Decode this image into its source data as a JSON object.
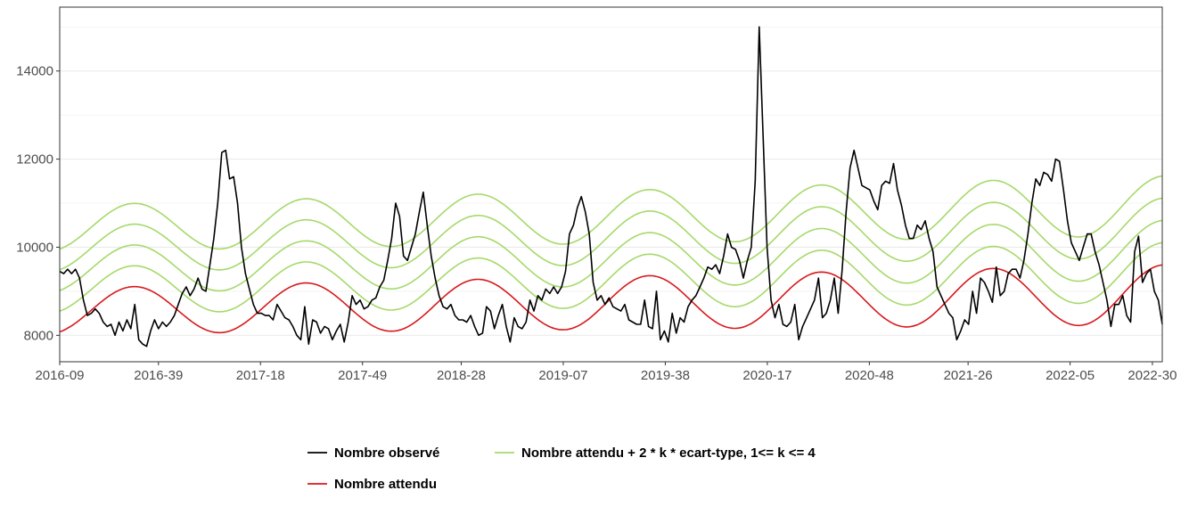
{
  "chart_data": {
    "type": "line",
    "title": "",
    "xlabel": "",
    "ylabel": "",
    "x_ticks": [
      "2016-09",
      "2016-39",
      "2017-18",
      "2017-49",
      "2018-28",
      "2019-07",
      "2019-38",
      "2020-17",
      "2020-48",
      "2021-26",
      "2022-05",
      "2022-30"
    ],
    "x_tick_weeks": [
      0,
      30,
      61,
      92,
      122,
      153,
      184,
      215,
      246,
      276,
      307,
      332
    ],
    "x_range_weeks": [
      0,
      335
    ],
    "y_ticks": [
      8000,
      10000,
      12000,
      14000
    ],
    "ylim": [
      7400,
      15450
    ],
    "grid": true,
    "legend_position": "bottom",
    "legend": [
      {
        "label": "Nombre observé",
        "color": "#000000"
      },
      {
        "label": "Nombre attendu + 2 * k * ecart-type, 1<= k <= 4",
        "color": "#a6d96a"
      },
      {
        "label": "Nombre attendu",
        "color": "#d7191c"
      }
    ],
    "expected": {
      "name": "Nombre attendu",
      "color": "#d7191c",
      "mean_start": 8550,
      "mean_end": 8920,
      "amplitude_start": 520,
      "amplitude_end": 680,
      "period_weeks": 52.2,
      "peak_week": 22.5
    },
    "thresholds": {
      "name": "Nombre attendu + 2 * k * ecart-type, 1<= k <= 4",
      "color": "#a6d96a",
      "k_values": [
        1,
        2,
        3,
        4
      ],
      "step_start": 470,
      "step_end": 505
    },
    "observed": {
      "name": "Nombre observé",
      "color": "#000000",
      "points": [
        [
          0,
          9450
        ],
        [
          1,
          9400
        ],
        [
          2,
          9500
        ],
        [
          3,
          9400
        ],
        [
          4,
          9500
        ],
        [
          5,
          9300
        ],
        [
          6,
          8800
        ],
        [
          7,
          8450
        ],
        [
          8,
          8500
        ],
        [
          9,
          8600
        ],
        [
          10,
          8500
        ],
        [
          11,
          8300
        ],
        [
          12,
          8200
        ],
        [
          13,
          8250
        ],
        [
          14,
          8000
        ],
        [
          15,
          8300
        ],
        [
          16,
          8100
        ],
        [
          17,
          8350
        ],
        [
          18,
          8150
        ],
        [
          19,
          8700
        ],
        [
          20,
          7900
        ],
        [
          21,
          7800
        ],
        [
          22,
          7750
        ],
        [
          23,
          8100
        ],
        [
          24,
          8350
        ],
        [
          25,
          8150
        ],
        [
          26,
          8300
        ],
        [
          27,
          8200
        ],
        [
          28,
          8300
        ],
        [
          29,
          8450
        ],
        [
          30,
          8700
        ],
        [
          31,
          8950
        ],
        [
          32,
          9100
        ],
        [
          33,
          8900
        ],
        [
          34,
          9050
        ],
        [
          35,
          9300
        ],
        [
          36,
          9050
        ],
        [
          37,
          9000
        ],
        [
          38,
          9600
        ],
        [
          39,
          10200
        ],
        [
          40,
          11000
        ],
        [
          41,
          12150
        ],
        [
          42,
          12200
        ],
        [
          43,
          11550
        ],
        [
          44,
          11600
        ],
        [
          45,
          11000
        ],
        [
          46,
          10000
        ],
        [
          47,
          9400
        ],
        [
          48,
          9050
        ],
        [
          49,
          8700
        ],
        [
          50,
          8500
        ],
        [
          51,
          8500
        ],
        [
          52,
          8450
        ],
        [
          53,
          8450
        ],
        [
          54,
          8350
        ],
        [
          55,
          8700
        ],
        [
          56,
          8550
        ],
        [
          57,
          8400
        ],
        [
          58,
          8350
        ],
        [
          59,
          8200
        ],
        [
          60,
          8000
        ],
        [
          61,
          7900
        ],
        [
          62,
          8650
        ],
        [
          63,
          7800
        ],
        [
          64,
          8350
        ],
        [
          65,
          8300
        ],
        [
          66,
          8050
        ],
        [
          67,
          8200
        ],
        [
          68,
          8150
        ],
        [
          69,
          7900
        ],
        [
          70,
          8100
        ],
        [
          71,
          8250
        ],
        [
          72,
          7850
        ],
        [
          73,
          8300
        ],
        [
          74,
          8900
        ],
        [
          75,
          8700
        ],
        [
          76,
          8800
        ],
        [
          77,
          8600
        ],
        [
          78,
          8650
        ],
        [
          79,
          8800
        ],
        [
          80,
          8850
        ],
        [
          81,
          9100
        ],
        [
          82,
          9250
        ],
        [
          83,
          9700
        ],
        [
          84,
          10200
        ],
        [
          85,
          11000
        ],
        [
          86,
          10700
        ],
        [
          87,
          9800
        ],
        [
          88,
          9700
        ],
        [
          89,
          10000
        ],
        [
          90,
          10300
        ],
        [
          91,
          10800
        ],
        [
          92,
          11250
        ],
        [
          93,
          10500
        ],
        [
          94,
          9800
        ],
        [
          95,
          9300
        ],
        [
          96,
          8900
        ],
        [
          97,
          8650
        ],
        [
          98,
          8600
        ],
        [
          99,
          8700
        ],
        [
          100,
          8450
        ],
        [
          101,
          8350
        ],
        [
          102,
          8350
        ],
        [
          103,
          8300
        ],
        [
          104,
          8450
        ],
        [
          105,
          8200
        ],
        [
          106,
          8000
        ],
        [
          107,
          8050
        ],
        [
          108,
          8650
        ],
        [
          109,
          8550
        ],
        [
          110,
          8150
        ],
        [
          111,
          8450
        ],
        [
          112,
          8700
        ],
        [
          113,
          8200
        ],
        [
          114,
          7850
        ],
        [
          115,
          8400
        ],
        [
          116,
          8200
        ],
        [
          117,
          8150
        ],
        [
          118,
          8300
        ],
        [
          119,
          8800
        ],
        [
          120,
          8550
        ],
        [
          121,
          8900
        ],
        [
          122,
          8800
        ],
        [
          123,
          9050
        ],
        [
          124,
          8950
        ],
        [
          125,
          9100
        ],
        [
          126,
          8950
        ],
        [
          127,
          9100
        ],
        [
          128,
          9450
        ],
        [
          129,
          10300
        ],
        [
          130,
          10500
        ],
        [
          131,
          10900
        ],
        [
          132,
          11150
        ],
        [
          133,
          10800
        ],
        [
          134,
          10300
        ],
        [
          135,
          9200
        ],
        [
          136,
          8800
        ],
        [
          137,
          8900
        ],
        [
          138,
          8700
        ],
        [
          139,
          8850
        ],
        [
          140,
          8650
        ],
        [
          141,
          8600
        ],
        [
          142,
          8550
        ],
        [
          143,
          8700
        ],
        [
          144,
          8350
        ],
        [
          145,
          8300
        ],
        [
          146,
          8250
        ],
        [
          147,
          8250
        ],
        [
          148,
          8800
        ],
        [
          149,
          8200
        ],
        [
          150,
          8150
        ],
        [
          151,
          9000
        ],
        [
          152,
          7900
        ],
        [
          153,
          8100
        ],
        [
          154,
          7850
        ],
        [
          155,
          8500
        ],
        [
          156,
          8050
        ],
        [
          157,
          8400
        ],
        [
          158,
          8300
        ],
        [
          159,
          8650
        ],
        [
          160,
          8800
        ],
        [
          161,
          8900
        ],
        [
          162,
          9100
        ],
        [
          163,
          9300
        ],
        [
          164,
          9550
        ],
        [
          165,
          9500
        ],
        [
          166,
          9600
        ],
        [
          167,
          9400
        ],
        [
          168,
          9800
        ],
        [
          169,
          10300
        ],
        [
          170,
          10000
        ],
        [
          171,
          9950
        ],
        [
          172,
          9700
        ],
        [
          173,
          9300
        ],
        [
          174,
          9700
        ],
        [
          175,
          10000
        ],
        [
          176,
          11500
        ],
        [
          177,
          15000
        ],
        [
          178,
          12500
        ],
        [
          179,
          10000
        ],
        [
          180,
          8800
        ],
        [
          181,
          8400
        ],
        [
          182,
          8700
        ],
        [
          183,
          8250
        ],
        [
          184,
          8200
        ],
        [
          185,
          8300
        ],
        [
          186,
          8700
        ],
        [
          187,
          7900
        ],
        [
          188,
          8200
        ],
        [
          189,
          8400
        ],
        [
          190,
          8600
        ],
        [
          191,
          8800
        ],
        [
          192,
          9300
        ],
        [
          193,
          8400
        ],
        [
          194,
          8500
        ],
        [
          195,
          8800
        ],
        [
          196,
          9300
        ],
        [
          197,
          8500
        ],
        [
          198,
          9500
        ],
        [
          199,
          10800
        ],
        [
          200,
          11800
        ],
        [
          201,
          12200
        ],
        [
          202,
          11800
        ],
        [
          203,
          11400
        ],
        [
          204,
          11350
        ],
        [
          205,
          11300
        ],
        [
          206,
          11050
        ],
        [
          207,
          10850
        ],
        [
          208,
          11400
        ],
        [
          209,
          11500
        ],
        [
          210,
          11450
        ],
        [
          211,
          11900
        ],
        [
          212,
          11300
        ],
        [
          213,
          10950
        ],
        [
          214,
          10500
        ],
        [
          215,
          10200
        ],
        [
          216,
          10200
        ],
        [
          217,
          10500
        ],
        [
          218,
          10400
        ],
        [
          219,
          10600
        ],
        [
          220,
          10200
        ],
        [
          221,
          9900
        ],
        [
          222,
          9100
        ],
        [
          223,
          8900
        ],
        [
          224,
          8700
        ],
        [
          225,
          8500
        ],
        [
          226,
          8400
        ],
        [
          227,
          7900
        ],
        [
          228,
          8100
        ],
        [
          229,
          8350
        ],
        [
          230,
          8250
        ],
        [
          231,
          9000
        ],
        [
          232,
          8500
        ],
        [
          233,
          9300
        ],
        [
          234,
          9200
        ],
        [
          235,
          9000
        ],
        [
          236,
          8750
        ],
        [
          237,
          9550
        ],
        [
          238,
          8900
        ],
        [
          239,
          9000
        ],
        [
          240,
          9400
        ],
        [
          241,
          9500
        ],
        [
          242,
          9500
        ],
        [
          243,
          9300
        ],
        [
          244,
          9700
        ],
        [
          245,
          10300
        ],
        [
          246,
          11000
        ],
        [
          247,
          11550
        ],
        [
          248,
          11400
        ],
        [
          249,
          11700
        ],
        [
          250,
          11650
        ],
        [
          251,
          11500
        ],
        [
          252,
          12000
        ],
        [
          253,
          11950
        ],
        [
          254,
          11300
        ],
        [
          255,
          10600
        ],
        [
          256,
          10100
        ],
        [
          257,
          9900
        ],
        [
          258,
          9700
        ],
        [
          259,
          10000
        ],
        [
          260,
          10300
        ],
        [
          261,
          10300
        ],
        [
          262,
          9900
        ],
        [
          263,
          9600
        ],
        [
          264,
          9200
        ],
        [
          265,
          8800
        ],
        [
          266,
          8200
        ],
        [
          267,
          8700
        ],
        [
          268,
          8700
        ],
        [
          269,
          8900
        ],
        [
          270,
          8450
        ],
        [
          271,
          8300
        ],
        [
          272,
          9900
        ],
        [
          273,
          10250
        ],
        [
          274,
          9200
        ],
        [
          275,
          9400
        ],
        [
          276,
          9500
        ],
        [
          277,
          9000
        ],
        [
          278,
          8800
        ],
        [
          279,
          8250
        ]
      ]
    }
  }
}
